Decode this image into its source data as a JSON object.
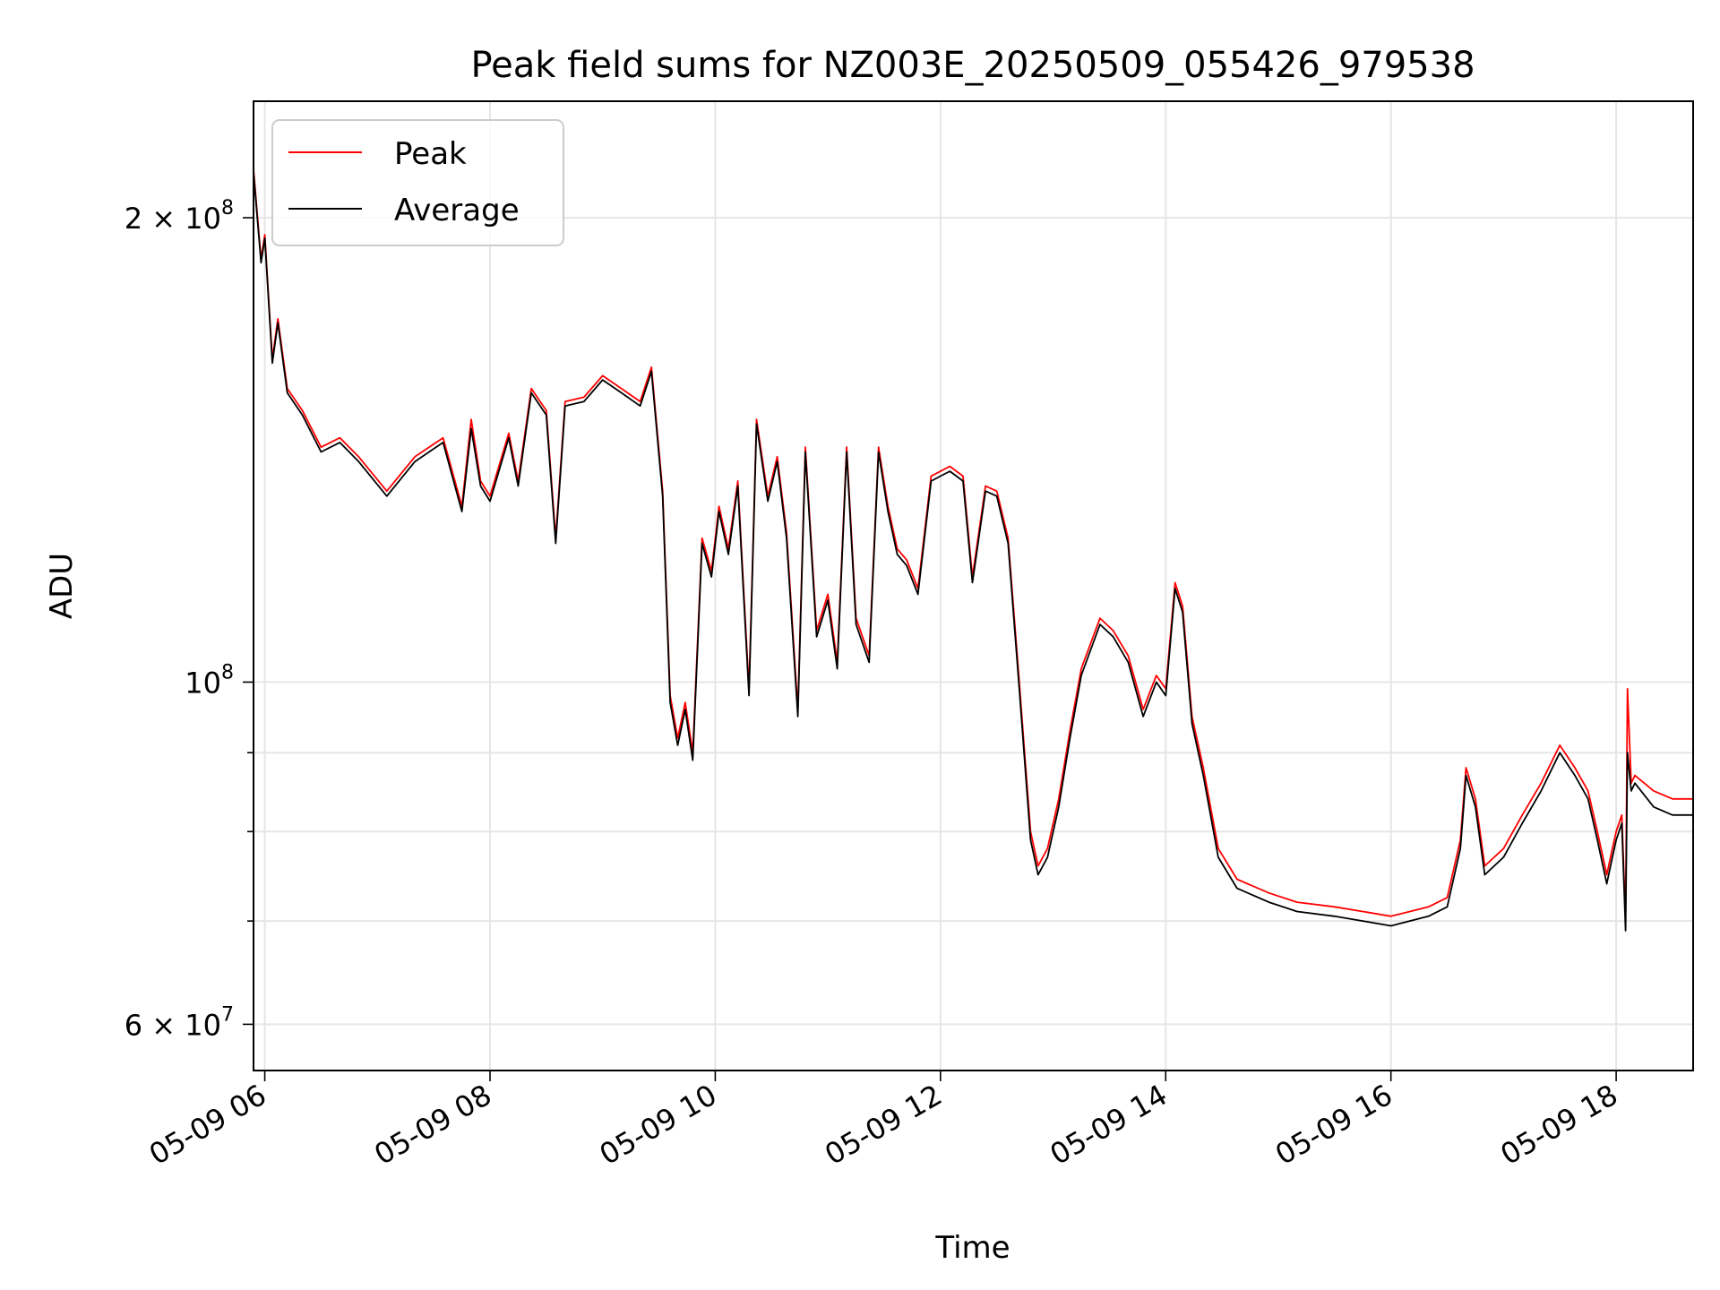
{
  "chart_data": {
    "type": "line",
    "title": "Peak field sums for NZ003E_20250509_055426_979538",
    "xlabel": "Time",
    "ylabel": "ADU",
    "yscale": "log",
    "xlim": [
      "2025-05-09 05:54",
      "2025-05-09 18:41"
    ],
    "ylim": [
      56000000,
      238000000
    ],
    "grid": true,
    "legend_position": "upper-left",
    "x_ticks": [
      {
        "value": "2025-05-09 06:00",
        "label": "05-09 06"
      },
      {
        "value": "2025-05-09 08:00",
        "label": "05-09 08"
      },
      {
        "value": "2025-05-09 10:00",
        "label": "05-09 10"
      },
      {
        "value": "2025-05-09 12:00",
        "label": "05-09 12"
      },
      {
        "value": "2025-05-09 14:00",
        "label": "05-09 14"
      },
      {
        "value": "2025-05-09 16:00",
        "label": "05-09 16"
      },
      {
        "value": "2025-05-09 18:00",
        "label": "05-09 18"
      }
    ],
    "y_major_ticks": [
      {
        "value": 60000000,
        "label_mantissa": "6 × 10",
        "label_exp": "7"
      },
      {
        "value": 100000000,
        "label_mantissa": "10",
        "label_exp": "8"
      },
      {
        "value": 200000000,
        "label_mantissa": "2 × 10",
        "label_exp": "8"
      }
    ],
    "y_minor_ticks": [
      70000000,
      80000000,
      90000000
    ],
    "series": [
      {
        "name": "Peak",
        "color": "#ff0000",
        "points": [
          [
            "2025-05-09 05:54",
            215000000.0
          ],
          [
            "2025-05-09 05:58",
            188000000.0
          ],
          [
            "2025-05-09 06:00",
            195000000.0
          ],
          [
            "2025-05-09 06:04",
            162000000.0
          ],
          [
            "2025-05-09 06:07",
            172000000.0
          ],
          [
            "2025-05-09 06:12",
            155000000.0
          ],
          [
            "2025-05-09 06:20",
            150000000.0
          ],
          [
            "2025-05-09 06:30",
            142000000.0
          ],
          [
            "2025-05-09 06:40",
            144000000.0
          ],
          [
            "2025-05-09 06:50",
            140000000.0
          ],
          [
            "2025-05-09 07:05",
            133000000.0
          ],
          [
            "2025-05-09 07:20",
            140000000.0
          ],
          [
            "2025-05-09 07:35",
            144000000.0
          ],
          [
            "2025-05-09 07:45",
            130000000.0
          ],
          [
            "2025-05-09 07:50",
            148000000.0
          ],
          [
            "2025-05-09 07:55",
            135000000.0
          ],
          [
            "2025-05-09 08:00",
            132000000.0
          ],
          [
            "2025-05-09 08:10",
            145000000.0
          ],
          [
            "2025-05-09 08:15",
            135000000.0
          ],
          [
            "2025-05-09 08:22",
            155000000.0
          ],
          [
            "2025-05-09 08:30",
            150000000.0
          ],
          [
            "2025-05-09 08:35",
            124000000.0
          ],
          [
            "2025-05-09 08:40",
            152000000.0
          ],
          [
            "2025-05-09 08:50",
            153000000.0
          ],
          [
            "2025-05-09 09:00",
            158000000.0
          ],
          [
            "2025-05-09 09:10",
            155000000.0
          ],
          [
            "2025-05-09 09:20",
            152000000.0
          ],
          [
            "2025-05-09 09:26",
            160000000.0
          ],
          [
            "2025-05-09 09:32",
            133000000.0
          ],
          [
            "2025-05-09 09:36",
            98000000.0
          ],
          [
            "2025-05-09 09:40",
            92000000.0
          ],
          [
            "2025-05-09 09:44",
            97000000.0
          ],
          [
            "2025-05-09 09:48",
            90000000.0
          ],
          [
            "2025-05-09 09:53",
            124000000.0
          ],
          [
            "2025-05-09 09:58",
            118000000.0
          ],
          [
            "2025-05-09 10:02",
            130000000.0
          ],
          [
            "2025-05-09 10:07",
            122000000.0
          ],
          [
            "2025-05-09 10:12",
            135000000.0
          ],
          [
            "2025-05-09 10:18",
            99000000.0
          ],
          [
            "2025-05-09 10:22",
            148000000.0
          ],
          [
            "2025-05-09 10:28",
            132000000.0
          ],
          [
            "2025-05-09 10:33",
            140000000.0
          ],
          [
            "2025-05-09 10:38",
            125000000.0
          ],
          [
            "2025-05-09 10:44",
            96000000.0
          ],
          [
            "2025-05-09 10:48",
            142000000.0
          ],
          [
            "2025-05-09 10:54",
            108000000.0
          ],
          [
            "2025-05-09 11:00",
            114000000.0
          ],
          [
            "2025-05-09 11:05",
            103000000.0
          ],
          [
            "2025-05-09 11:10",
            142000000.0
          ],
          [
            "2025-05-09 11:15",
            110000000.0
          ],
          [
            "2025-05-09 11:22",
            104000000.0
          ],
          [
            "2025-05-09 11:27",
            142000000.0
          ],
          [
            "2025-05-09 11:32",
            130000000.0
          ],
          [
            "2025-05-09 11:37",
            122000000.0
          ],
          [
            "2025-05-09 11:42",
            120000000.0
          ],
          [
            "2025-05-09 11:48",
            115000000.0
          ],
          [
            "2025-05-09 11:55",
            136000000.0
          ],
          [
            "2025-05-09 12:05",
            138000000.0
          ],
          [
            "2025-05-09 12:12",
            136000000.0
          ],
          [
            "2025-05-09 12:17",
            117000000.0
          ],
          [
            "2025-05-09 12:24",
            134000000.0
          ],
          [
            "2025-05-09 12:30",
            133000000.0
          ],
          [
            "2025-05-09 12:36",
            124000000.0
          ],
          [
            "2025-05-09 12:42",
            100000000.0
          ],
          [
            "2025-05-09 12:48",
            80000000.0
          ],
          [
            "2025-05-09 12:52",
            76000000.0
          ],
          [
            "2025-05-09 12:57",
            78000000.0
          ],
          [
            "2025-05-09 13:03",
            84000000.0
          ],
          [
            "2025-05-09 13:09",
            93000000.0
          ],
          [
            "2025-05-09 13:15",
            102000000.0
          ],
          [
            "2025-05-09 13:25",
            110000000.0
          ],
          [
            "2025-05-09 13:32",
            108000000.0
          ],
          [
            "2025-05-09 13:40",
            104000000.0
          ],
          [
            "2025-05-09 13:48",
            96000000.0
          ],
          [
            "2025-05-09 13:55",
            101000000.0
          ],
          [
            "2025-05-09 14:00",
            99000000.0
          ],
          [
            "2025-05-09 14:05",
            116000000.0
          ],
          [
            "2025-05-09 14:09",
            112000000.0
          ],
          [
            "2025-05-09 14:14",
            95000000.0
          ],
          [
            "2025-05-09 14:20",
            88000000.0
          ],
          [
            "2025-05-09 14:28",
            78000000.0
          ],
          [
            "2025-05-09 14:38",
            74500000.0
          ],
          [
            "2025-05-09 14:55",
            73000000.0
          ],
          [
            "2025-05-09 15:10",
            72000000.0
          ],
          [
            "2025-05-09 15:30",
            71500000.0
          ],
          [
            "2025-05-09 15:45",
            71000000.0
          ],
          [
            "2025-05-09 16:00",
            70500000.0
          ],
          [
            "2025-05-09 16:20",
            71500000.0
          ],
          [
            "2025-05-09 16:30",
            72500000.0
          ],
          [
            "2025-05-09 16:37",
            79000000.0
          ],
          [
            "2025-05-09 16:40",
            88000000.0
          ],
          [
            "2025-05-09 16:45",
            84000000.0
          ],
          [
            "2025-05-09 16:50",
            76000000.0
          ],
          [
            "2025-05-09 17:00",
            78000000.0
          ],
          [
            "2025-05-09 17:10",
            82000000.0
          ],
          [
            "2025-05-09 17:20",
            86000000.0
          ],
          [
            "2025-05-09 17:30",
            91000000.0
          ],
          [
            "2025-05-09 17:38",
            88000000.0
          ],
          [
            "2025-05-09 17:45",
            85000000.0
          ],
          [
            "2025-05-09 17:50",
            80000000.0
          ],
          [
            "2025-05-09 17:55",
            75000000.0
          ],
          [
            "2025-05-09 17:58",
            78000000.0
          ],
          [
            "2025-05-09 18:00",
            80000000.0
          ],
          [
            "2025-05-09 18:03",
            82000000.0
          ],
          [
            "2025-05-09 18:05",
            70000000.0
          ],
          [
            "2025-05-09 18:06",
            99000000.0
          ],
          [
            "2025-05-09 18:08",
            86000000.0
          ],
          [
            "2025-05-09 18:10",
            87000000.0
          ],
          [
            "2025-05-09 18:20",
            85000000.0
          ],
          [
            "2025-05-09 18:30",
            84000000.0
          ],
          [
            "2025-05-09 18:41",
            84000000.0
          ]
        ]
      },
      {
        "name": "Average",
        "color": "#000000",
        "points": [
          [
            "2025-05-09 05:54",
            214000000.0
          ],
          [
            "2025-05-09 05:58",
            187000000.0
          ],
          [
            "2025-05-09 06:00",
            194000000.0
          ],
          [
            "2025-05-09 06:04",
            161000000.0
          ],
          [
            "2025-05-09 06:07",
            171000000.0
          ],
          [
            "2025-05-09 06:12",
            154000000.0
          ],
          [
            "2025-05-09 06:20",
            149000000.0
          ],
          [
            "2025-05-09 06:30",
            141000000.0
          ],
          [
            "2025-05-09 06:40",
            143000000.0
          ],
          [
            "2025-05-09 06:50",
            139000000.0
          ],
          [
            "2025-05-09 07:05",
            132000000.0
          ],
          [
            "2025-05-09 07:20",
            139000000.0
          ],
          [
            "2025-05-09 07:35",
            143000000.0
          ],
          [
            "2025-05-09 07:45",
            129000000.0
          ],
          [
            "2025-05-09 07:50",
            146000000.0
          ],
          [
            "2025-05-09 07:55",
            134000000.0
          ],
          [
            "2025-05-09 08:00",
            131000000.0
          ],
          [
            "2025-05-09 08:10",
            144000000.0
          ],
          [
            "2025-05-09 08:15",
            134000000.0
          ],
          [
            "2025-05-09 08:22",
            154000000.0
          ],
          [
            "2025-05-09 08:30",
            149000000.0
          ],
          [
            "2025-05-09 08:35",
            123000000.0
          ],
          [
            "2025-05-09 08:40",
            151000000.0
          ],
          [
            "2025-05-09 08:50",
            152000000.0
          ],
          [
            "2025-05-09 09:00",
            157000000.0
          ],
          [
            "2025-05-09 09:10",
            154000000.0
          ],
          [
            "2025-05-09 09:20",
            151000000.0
          ],
          [
            "2025-05-09 09:26",
            159000000.0
          ],
          [
            "2025-05-09 09:32",
            132000000.0
          ],
          [
            "2025-05-09 09:36",
            97000000.0
          ],
          [
            "2025-05-09 09:40",
            91000000.0
          ],
          [
            "2025-05-09 09:44",
            96000000.0
          ],
          [
            "2025-05-09 09:48",
            89000000.0
          ],
          [
            "2025-05-09 09:53",
            123000000.0
          ],
          [
            "2025-05-09 09:58",
            117000000.0
          ],
          [
            "2025-05-09 10:02",
            129000000.0
          ],
          [
            "2025-05-09 10:07",
            121000000.0
          ],
          [
            "2025-05-09 10:12",
            134000000.0
          ],
          [
            "2025-05-09 10:18",
            98000000.0
          ],
          [
            "2025-05-09 10:22",
            147000000.0
          ],
          [
            "2025-05-09 10:28",
            131000000.0
          ],
          [
            "2025-05-09 10:33",
            139000000.0
          ],
          [
            "2025-05-09 10:38",
            124000000.0
          ],
          [
            "2025-05-09 10:44",
            95000000.0
          ],
          [
            "2025-05-09 10:48",
            141000000.0
          ],
          [
            "2025-05-09 10:54",
            107000000.0
          ],
          [
            "2025-05-09 11:00",
            113000000.0
          ],
          [
            "2025-05-09 11:05",
            102000000.0
          ],
          [
            "2025-05-09 11:10",
            141000000.0
          ],
          [
            "2025-05-09 11:15",
            109000000.0
          ],
          [
            "2025-05-09 11:22",
            103000000.0
          ],
          [
            "2025-05-09 11:27",
            141000000.0
          ],
          [
            "2025-05-09 11:32",
            129000000.0
          ],
          [
            "2025-05-09 11:37",
            121000000.0
          ],
          [
            "2025-05-09 11:42",
            119000000.0
          ],
          [
            "2025-05-09 11:48",
            114000000.0
          ],
          [
            "2025-05-09 11:55",
            135000000.0
          ],
          [
            "2025-05-09 12:05",
            137000000.0
          ],
          [
            "2025-05-09 12:12",
            135000000.0
          ],
          [
            "2025-05-09 12:17",
            116000000.0
          ],
          [
            "2025-05-09 12:24",
            133000000.0
          ],
          [
            "2025-05-09 12:30",
            132000000.0
          ],
          [
            "2025-05-09 12:36",
            123000000.0
          ],
          [
            "2025-05-09 12:42",
            99000000.0
          ],
          [
            "2025-05-09 12:48",
            79000000.0
          ],
          [
            "2025-05-09 12:52",
            75000000.0
          ],
          [
            "2025-05-09 12:57",
            77000000.0
          ],
          [
            "2025-05-09 13:03",
            83000000.0
          ],
          [
            "2025-05-09 13:09",
            92000000.0
          ],
          [
            "2025-05-09 13:15",
            101000000.0
          ],
          [
            "2025-05-09 13:25",
            109000000.0
          ],
          [
            "2025-05-09 13:32",
            107000000.0
          ],
          [
            "2025-05-09 13:40",
            103000000.0
          ],
          [
            "2025-05-09 13:48",
            95000000.0
          ],
          [
            "2025-05-09 13:55",
            100000000.0
          ],
          [
            "2025-05-09 14:00",
            98000000.0
          ],
          [
            "2025-05-09 14:05",
            115000000.0
          ],
          [
            "2025-05-09 14:09",
            111000000.0
          ],
          [
            "2025-05-09 14:14",
            94000000.0
          ],
          [
            "2025-05-09 14:20",
            87000000.0
          ],
          [
            "2025-05-09 14:28",
            77000000.0
          ],
          [
            "2025-05-09 14:38",
            73500000.0
          ],
          [
            "2025-05-09 14:55",
            72000000.0
          ],
          [
            "2025-05-09 15:10",
            71000000.0
          ],
          [
            "2025-05-09 15:30",
            70500000.0
          ],
          [
            "2025-05-09 15:45",
            70000000.0
          ],
          [
            "2025-05-09 16:00",
            69500000.0
          ],
          [
            "2025-05-09 16:20",
            70500000.0
          ],
          [
            "2025-05-09 16:30",
            71500000.0
          ],
          [
            "2025-05-09 16:37",
            78000000.0
          ],
          [
            "2025-05-09 16:40",
            87000000.0
          ],
          [
            "2025-05-09 16:45",
            83000000.0
          ],
          [
            "2025-05-09 16:50",
            75000000.0
          ],
          [
            "2025-05-09 17:00",
            77000000.0
          ],
          [
            "2025-05-09 17:10",
            81000000.0
          ],
          [
            "2025-05-09 17:20",
            85000000.0
          ],
          [
            "2025-05-09 17:30",
            90000000.0
          ],
          [
            "2025-05-09 17:38",
            87000000.0
          ],
          [
            "2025-05-09 17:45",
            84000000.0
          ],
          [
            "2025-05-09 17:50",
            79000000.0
          ],
          [
            "2025-05-09 17:55",
            74000000.0
          ],
          [
            "2025-05-09 17:58",
            77000000.0
          ],
          [
            "2025-05-09 18:00",
            79000000.0
          ],
          [
            "2025-05-09 18:03",
            81000000.0
          ],
          [
            "2025-05-09 18:05",
            69000000.0
          ],
          [
            "2025-05-09 18:06",
            90000000.0
          ],
          [
            "2025-05-09 18:08",
            85000000.0
          ],
          [
            "2025-05-09 18:10",
            86000000.0
          ],
          [
            "2025-05-09 18:20",
            83000000.0
          ],
          [
            "2025-05-09 18:30",
            82000000.0
          ],
          [
            "2025-05-09 18:41",
            82000000.0
          ]
        ]
      }
    ]
  }
}
